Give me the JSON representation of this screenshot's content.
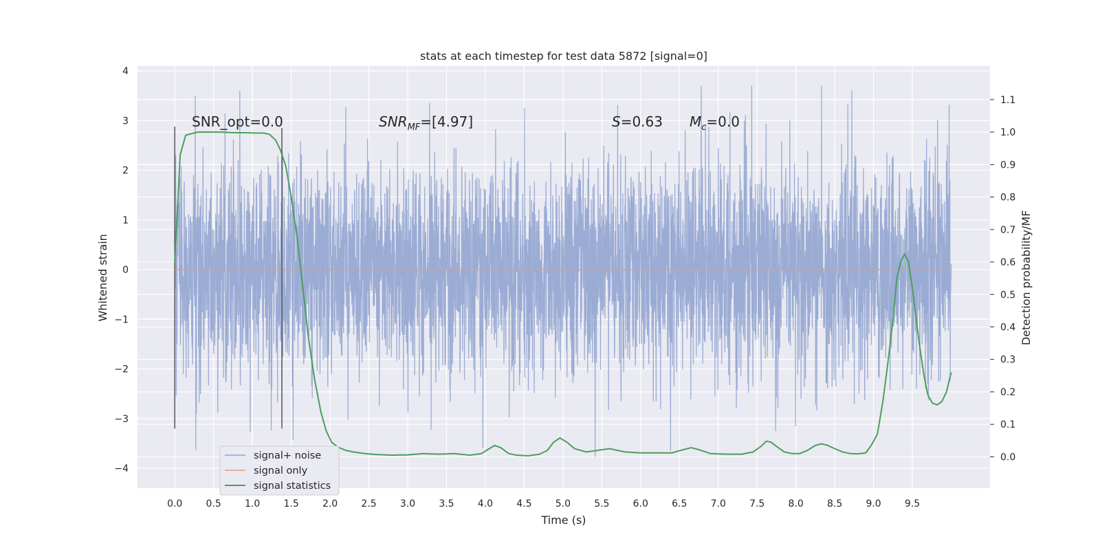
{
  "chart_data": {
    "type": "line",
    "title": "stats at each timestep for test data 5872 [signal=0]",
    "xlabel": "Time (s)",
    "ylabel": "Whitened strain",
    "y2label": "Detection probability/MF",
    "xlim": [
      -0.48,
      10.5
    ],
    "ylim": [
      -4.4,
      4.1
    ],
    "y2lim": [
      -0.0965,
      1.2035
    ],
    "x_ticks": [
      0.0,
      0.5,
      1.0,
      1.5,
      2.0,
      2.5,
      3.0,
      3.5,
      4.0,
      4.5,
      5.0,
      5.5,
      6.0,
      6.5,
      7.0,
      7.5,
      8.0,
      8.5,
      9.0,
      9.5
    ],
    "x_tick_labels": [
      "0.0",
      "0.5",
      "1.0",
      "1.5",
      "2.0",
      "2.5",
      "3.0",
      "3.5",
      "4.0",
      "4.5",
      "5.0",
      "5.5",
      "6.0",
      "6.5",
      "7.0",
      "7.5",
      "8.0",
      "8.5",
      "9.0",
      "9.5"
    ],
    "y_ticks": [
      -4,
      -3,
      -2,
      -1,
      0,
      1,
      2,
      3,
      4
    ],
    "y_tick_labels": [
      "−4",
      "−3",
      "−2",
      "−1",
      "0",
      "1",
      "2",
      "3",
      "4"
    ],
    "y2_ticks": [
      0.0,
      0.1,
      0.2,
      0.3,
      0.4,
      0.5,
      0.6,
      0.7,
      0.8,
      0.9,
      1.0,
      1.1
    ],
    "y2_tick_labels": [
      "0.0",
      "0.1",
      "0.2",
      "0.3",
      "0.4",
      "0.5",
      "0.6",
      "0.7",
      "0.8",
      "0.9",
      "1.0",
      "1.1"
    ],
    "grid": true,
    "legend_position": "lower-left",
    "annotations": {
      "snr_opt": "SNR_opt=0.0",
      "snr_mf_base": "SNR",
      "snr_mf_sub": "MF",
      "snr_mf_value": "=[4.97]",
      "s_symbol": "S",
      "s_value": "=0.63",
      "mc_symbol": "M",
      "mc_sub": "c",
      "mc_value": "=0.0"
    },
    "vertical_markers": [
      {
        "x": 0.0,
        "y_range": [
          -3.2,
          2.88
        ],
        "color": "#555555"
      },
      {
        "x": 1.38,
        "y_range": [
          -3.2,
          2.85
        ],
        "color": "#555555"
      }
    ],
    "series": [
      {
        "name": "signal+ noise",
        "color": "#8fa3cf",
        "kind": "noise",
        "t_range": [
          0.0,
          10.0
        ],
        "n_samples": 4096,
        "typical_envelope": 1.05,
        "observed_extremes": {
          "max": 3.7,
          "min": -4.05
        }
      },
      {
        "name": "signal only",
        "color": "#e59b7b",
        "x": [
          0.0,
          10.0
        ],
        "y": [
          0.0,
          0.0
        ]
      },
      {
        "name": "signal statistics",
        "color": "#4a9e5c",
        "axis": "right",
        "x": [
          0.0,
          0.07,
          0.14,
          0.21,
          0.3,
          0.45,
          0.6,
          0.75,
          0.9,
          1.05,
          1.15,
          1.22,
          1.3,
          1.36,
          1.43,
          1.5,
          1.58,
          1.65,
          1.72,
          1.8,
          1.88,
          1.95,
          2.02,
          2.1,
          2.2,
          2.3,
          2.45,
          2.6,
          2.8,
          3.0,
          3.2,
          3.4,
          3.6,
          3.8,
          3.95,
          4.05,
          4.12,
          4.2,
          4.3,
          4.4,
          4.55,
          4.7,
          4.8,
          4.88,
          4.96,
          5.05,
          5.15,
          5.3,
          5.45,
          5.6,
          5.8,
          6.0,
          6.2,
          6.4,
          6.55,
          6.65,
          6.75,
          6.9,
          7.1,
          7.3,
          7.45,
          7.55,
          7.62,
          7.68,
          7.75,
          7.85,
          7.95,
          8.05,
          8.15,
          8.25,
          8.33,
          8.4,
          8.5,
          8.6,
          8.7,
          8.8,
          8.9,
          8.97,
          9.05,
          9.12,
          9.18,
          9.25,
          9.3,
          9.35,
          9.4,
          9.45,
          9.5,
          9.55,
          9.6,
          9.65,
          9.7,
          9.76,
          9.82,
          9.88,
          9.94,
          10.0
        ],
        "y": [
          0.6,
          0.93,
          0.99,
          0.995,
          1.0,
          1.0,
          1.0,
          0.998,
          0.998,
          0.997,
          0.997,
          0.993,
          0.975,
          0.945,
          0.895,
          0.8,
          0.67,
          0.52,
          0.37,
          0.24,
          0.14,
          0.08,
          0.045,
          0.03,
          0.02,
          0.015,
          0.01,
          0.007,
          0.005,
          0.006,
          0.01,
          0.008,
          0.01,
          0.005,
          0.01,
          0.025,
          0.035,
          0.028,
          0.01,
          0.005,
          0.003,
          0.008,
          0.02,
          0.045,
          0.058,
          0.045,
          0.025,
          0.015,
          0.02,
          0.025,
          0.015,
          0.012,
          0.012,
          0.012,
          0.022,
          0.028,
          0.022,
          0.01,
          0.008,
          0.008,
          0.015,
          0.032,
          0.048,
          0.045,
          0.032,
          0.015,
          0.01,
          0.01,
          0.02,
          0.035,
          0.04,
          0.036,
          0.025,
          0.015,
          0.01,
          0.009,
          0.012,
          0.035,
          0.07,
          0.17,
          0.28,
          0.42,
          0.55,
          0.6,
          0.625,
          0.6,
          0.52,
          0.42,
          0.33,
          0.25,
          0.19,
          0.165,
          0.16,
          0.17,
          0.2,
          0.26
        ]
      }
    ]
  }
}
